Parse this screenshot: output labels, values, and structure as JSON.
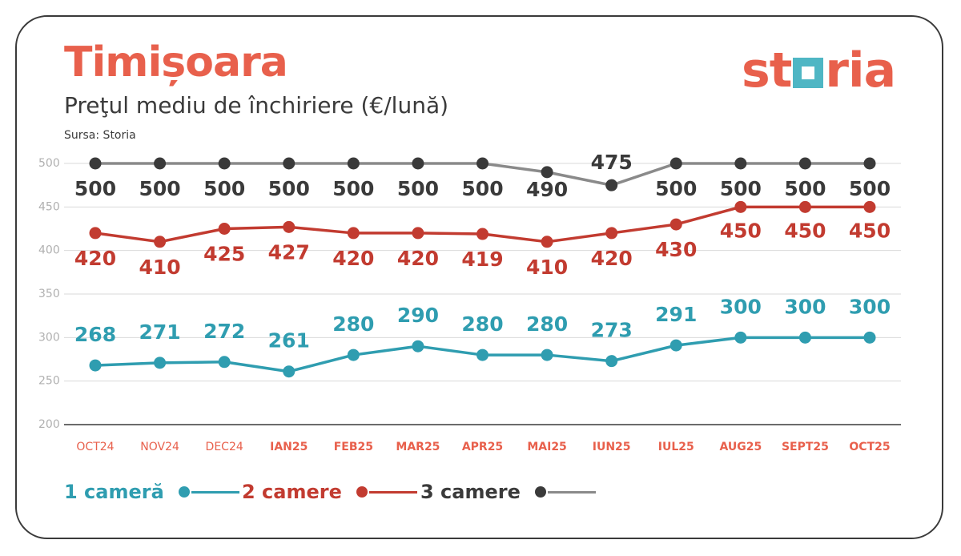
{
  "header": {
    "title": "Timișoara",
    "subtitle": "Preţul mediu de închiriere (€/lună)",
    "source": "Sursa: Storia"
  },
  "logo": {
    "text_left": "st",
    "text_right": "ria",
    "colors": {
      "text": "#e8604c",
      "square": "#4fb6c4"
    }
  },
  "colors": {
    "one_room": "#2f9db0",
    "two_room": "#c23b30",
    "three_room_line": "#8a8a8a",
    "three_room_dot": "#3a3a3a",
    "axis_label": "#e8604c",
    "grid": "#d9d9d9"
  },
  "legend": [
    {
      "label": "1 cameră",
      "color": "#2f9db0"
    },
    {
      "label": "2 camere",
      "color": "#c23b30"
    },
    {
      "label": "3 camere",
      "color": "#3a3a3a"
    }
  ],
  "chart_data": {
    "type": "line",
    "categories": [
      "OCT24",
      "NOV24",
      "DEC24",
      "IAN25",
      "FEB25",
      "MAR25",
      "APR25",
      "MAI25",
      "IUN25",
      "IUL25",
      "AUG25",
      "SEPT25",
      "OCT25"
    ],
    "yticks": [
      500,
      450,
      400,
      350,
      300,
      250,
      200
    ],
    "ylim": [
      200,
      500
    ],
    "grid": true,
    "series": [
      {
        "name": "1 cameră",
        "values": [
          268,
          271,
          272,
          261,
          280,
          290,
          280,
          280,
          273,
          291,
          300,
          300,
          300
        ],
        "label_values": [
          "268",
          "271",
          "272",
          "261",
          "280",
          "290",
          "280",
          "280",
          "273",
          "291",
          "300",
          "300",
          "300"
        ]
      },
      {
        "name": "2 camere",
        "values": [
          420,
          410,
          425,
          427,
          420,
          420,
          419,
          410,
          420,
          430,
          450,
          450,
          450
        ],
        "label_values": [
          "420",
          "410",
          "425",
          "427",
          "420",
          "420",
          "419",
          "410",
          "420",
          "430",
          "450",
          "450",
          "450"
        ]
      },
      {
        "name": "3 camere",
        "values": [
          500,
          500,
          500,
          500,
          500,
          500,
          500,
          490,
          475,
          500,
          500,
          500,
          500
        ],
        "label_values": [
          "500",
          "500",
          "500",
          "500",
          "500",
          "500",
          "500",
          "490",
          "475",
          "500",
          "500",
          "500",
          "500"
        ]
      }
    ]
  }
}
